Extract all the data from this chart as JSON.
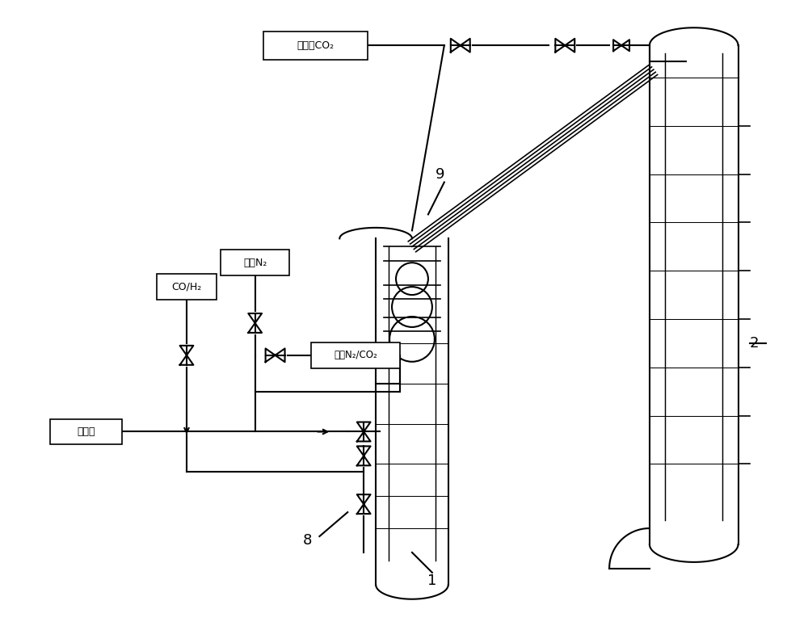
{
  "bg_color": "#ffffff",
  "line_color": "#000000",
  "line_width": 1.5,
  "labels": {
    "re_gao_ya_co2": "蒸高压CO₂",
    "gao_ya_n2": "高压N₂",
    "gao_ya_n2_co2": "高压N₂/CO₂",
    "co_h2": "CO/H₂",
    "ji_leng_qi": "激冷气",
    "num_1": "1",
    "num_2": "2",
    "num_8": "8",
    "num_9": "9"
  },
  "font_size": 11
}
